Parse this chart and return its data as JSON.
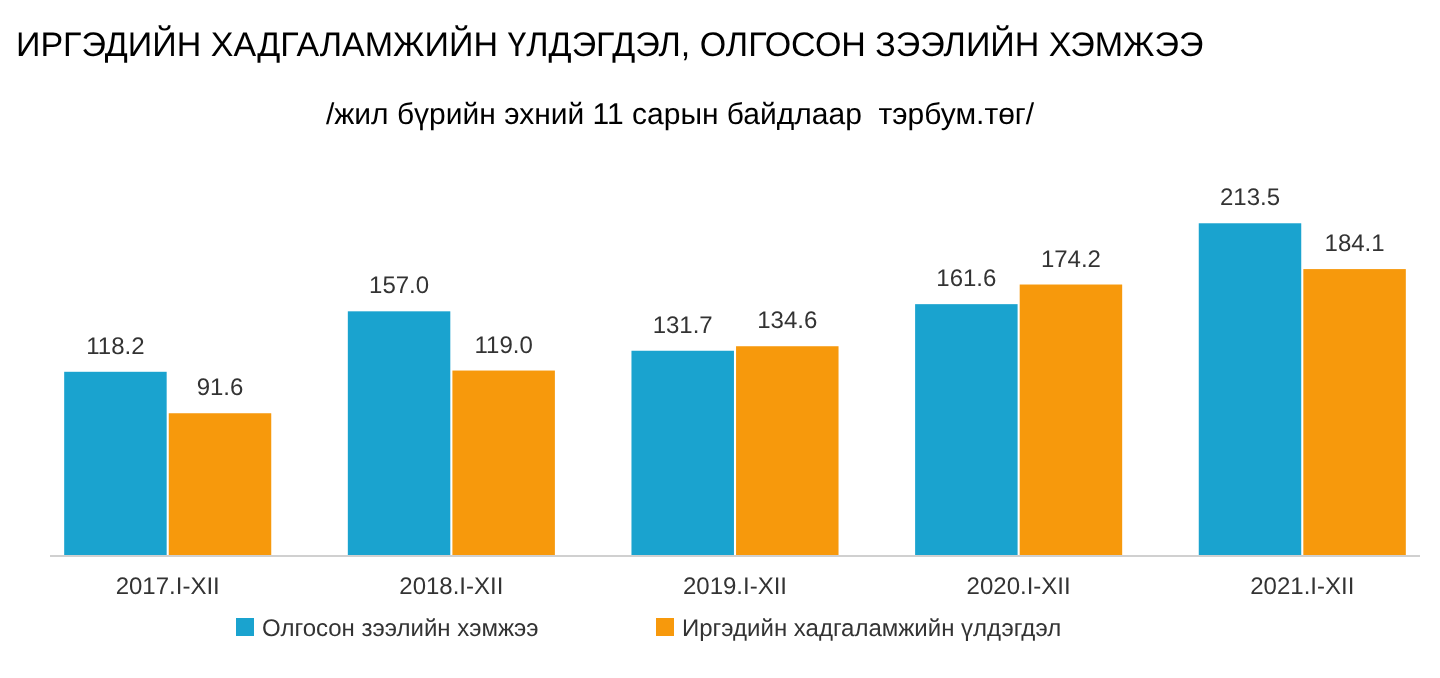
{
  "chart_data": {
    "type": "bar",
    "title": "ИРГЭДИЙН ХАДГАЛАМЖИЙН ҮЛДЭГДЭЛ, ОЛГОСОН ЗЭЭЛИЙН ХЭМЖЭЭ",
    "subtitle": "/жил бүрийн эхний 11 сарын байдлаар  тэрбум.төг/",
    "categories": [
      "2017.I-XII",
      "2018.I-XII",
      "2019.I-XII",
      "2020.I-XII",
      "2021.I-XII"
    ],
    "series": [
      {
        "name": "Олгосон зээлийн хэмжээ",
        "color": "#1aa3cf",
        "values": [
          118.2,
          157.0,
          131.7,
          161.6,
          213.5
        ],
        "value_labels": [
          "118.2",
          "157.0",
          "131.7",
          "161.6",
          "213.5"
        ]
      },
      {
        "name": "Иргэдийн хадгаламжийн үлдэгдэл",
        "color": "#f7990c",
        "values": [
          91.6,
          119.0,
          134.6,
          174.2,
          184.1
        ],
        "value_labels": [
          "91.6",
          "119.0",
          "134.6",
          "174.2",
          "184.1"
        ]
      }
    ],
    "legend": "bottom"
  }
}
